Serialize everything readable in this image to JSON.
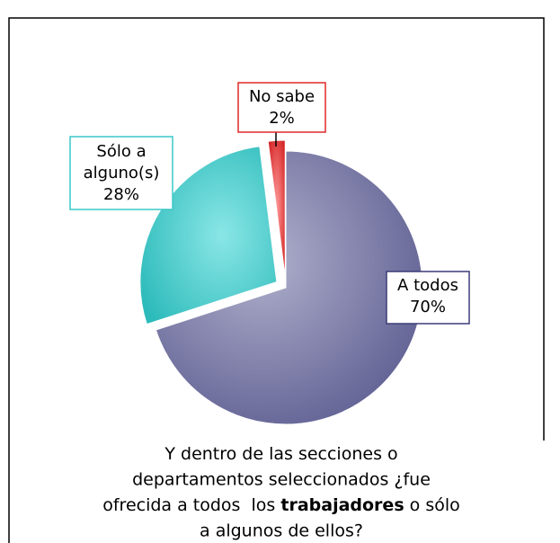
{
  "chart_data": {
    "type": "pie",
    "categories": [
      "A todos",
      "Sólo a alguno(s)",
      "No sabe"
    ],
    "values": [
      70,
      28,
      2
    ],
    "value_labels": [
      "70%",
      "28%",
      "2%"
    ],
    "colors": [
      "#6e6ea0",
      "#3cc8c8",
      "#e02828"
    ],
    "caption": [
      [
        {
          "text": "Y dentro de las secciones o"
        }
      ],
      [
        {
          "text": "departamentos seleccionados ¿fue"
        }
      ],
      [
        {
          "text": "ofrecida a todos  los "
        },
        {
          "text": "trabajadores",
          "bold": true
        },
        {
          "text": " o sólo"
        }
      ],
      [
        {
          "text": "a algunos de ellos?"
        }
      ]
    ]
  }
}
